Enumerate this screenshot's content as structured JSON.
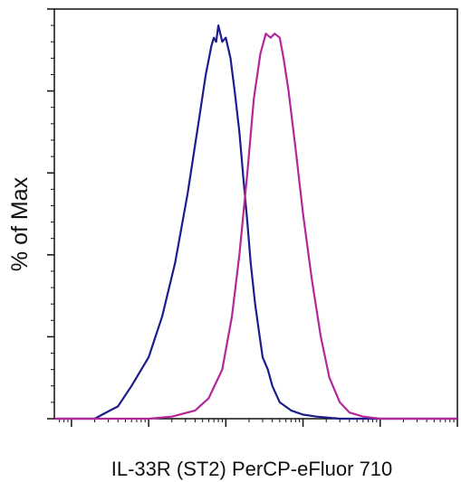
{
  "chart_data": {
    "type": "line",
    "title": "",
    "xlabel": "IL-33R (ST2) PerCP-eFluor 710",
    "ylabel": "% of Max",
    "x_scale": "log",
    "xlim": [
      0.6,
      100000
    ],
    "ylim": [
      0,
      100
    ],
    "y_major_ticks": [
      0,
      20,
      40,
      60,
      80,
      100
    ],
    "grid": false,
    "legend": "none",
    "series": [
      {
        "color": "#1c1c8c",
        "x": [
          0.6,
          2.0,
          2.5,
          4,
          6,
          10,
          15,
          22,
          32,
          44,
          55,
          65,
          70,
          75,
          80,
          90,
          100,
          115,
          130,
          150,
          170,
          190,
          210,
          240,
          270,
          300,
          350,
          400,
          500,
          700,
          1000,
          1500,
          3000,
          10000,
          100000
        ],
        "y": [
          0,
          0,
          1,
          3,
          8,
          15,
          25,
          38,
          55,
          72,
          84,
          91,
          93,
          92,
          96,
          92,
          93,
          88,
          80,
          70,
          58,
          48,
          38,
          28,
          21,
          15,
          12,
          8,
          4,
          2,
          1,
          0.5,
          0,
          0,
          0
        ]
      },
      {
        "color": "#b4279b",
        "x": [
          0.6,
          10,
          20,
          40,
          60,
          90,
          120,
          150,
          190,
          230,
          280,
          330,
          380,
          430,
          500,
          560,
          650,
          800,
          1000,
          1300,
          1700,
          2200,
          3000,
          4000,
          6000,
          10000,
          100000
        ],
        "y": [
          0,
          0,
          0.5,
          2,
          5,
          12,
          25,
          40,
          60,
          78,
          89,
          94,
          93,
          94,
          93,
          88,
          80,
          66,
          50,
          34,
          20,
          10,
          4,
          1.5,
          0.5,
          0,
          0
        ]
      }
    ]
  }
}
